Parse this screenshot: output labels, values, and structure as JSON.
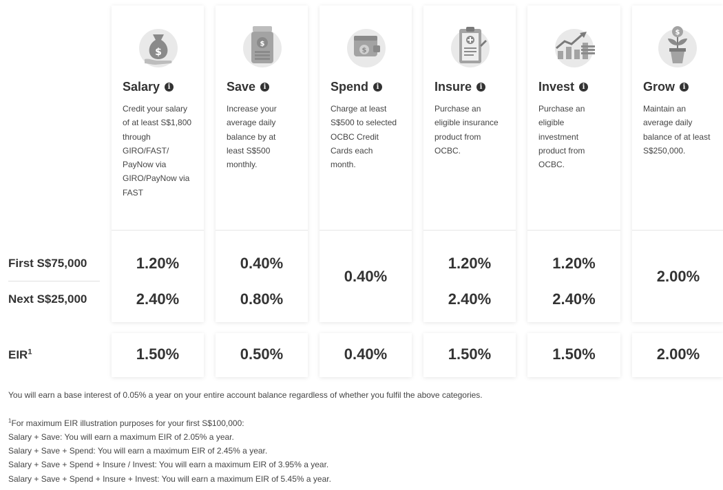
{
  "row_labels": {
    "first": "First S$75,000",
    "next": "Next S$25,000",
    "eir": "EIR",
    "eir_sup": "1"
  },
  "categories": [
    {
      "title": "Salary",
      "icon": "money-bag-hand-icon",
      "desc": [
        "Credit your salary",
        "of at least S$1,800",
        "through",
        "GIRO/FAST/",
        "PayNow via",
        "GIRO/PayNow via",
        "FAST"
      ],
      "first": "1.20%",
      "next": "2.40%",
      "single": "",
      "eir": "1.50%"
    },
    {
      "title": "Save",
      "icon": "coin-jar-icon",
      "desc": [
        "Increase your",
        "average daily",
        "balance by at",
        "least S$500",
        "monthly."
      ],
      "first": "0.40%",
      "next": "0.80%",
      "single": "",
      "eir": "0.50%"
    },
    {
      "title": "Spend",
      "icon": "wallet-icon",
      "desc": [
        "Charge at least",
        "S$500 to selected",
        "OCBC Credit",
        "Cards each",
        "month."
      ],
      "first": "",
      "next": "",
      "single": "0.40%",
      "eir": "0.40%"
    },
    {
      "title": "Insure",
      "icon": "clipboard-medical-icon",
      "desc": [
        "Purchase an",
        "eligible insurance",
        "product from",
        "OCBC."
      ],
      "first": "1.20%",
      "next": "2.40%",
      "single": "",
      "eir": "1.50%"
    },
    {
      "title": "Invest",
      "icon": "growth-chart-icon",
      "desc": [
        "Purchase an",
        "eligible",
        "investment",
        "product from",
        "OCBC."
      ],
      "first": "1.20%",
      "next": "2.40%",
      "single": "",
      "eir": "1.50%"
    },
    {
      "title": "Grow",
      "icon": "money-plant-icon",
      "desc": [
        "Maintain an",
        "average daily",
        "balance of at least",
        "S$250,000."
      ],
      "first": "",
      "next": "",
      "single": "2.00%",
      "eir": "2.00%"
    }
  ],
  "base_note": "You will earn a base interest of 0.05% a year on your entire account balance regardless of whether you fulfil the above categories.",
  "footnote": {
    "sup": "1",
    "intro": "For maximum EIR illustration purposes for your first S$100,000:",
    "lines": [
      "Salary + Save: You will earn a maximum EIR of 2.05% a year.",
      "Salary + Save + Spend: You will earn a maximum EIR of 2.45% a year.",
      "Salary + Save + Spend + Insure / Invest: You will earn a maximum EIR of 3.95% a year.",
      "Salary + Save + Spend + Insure + Invest: You will earn a maximum EIR of 5.45% a year."
    ]
  }
}
